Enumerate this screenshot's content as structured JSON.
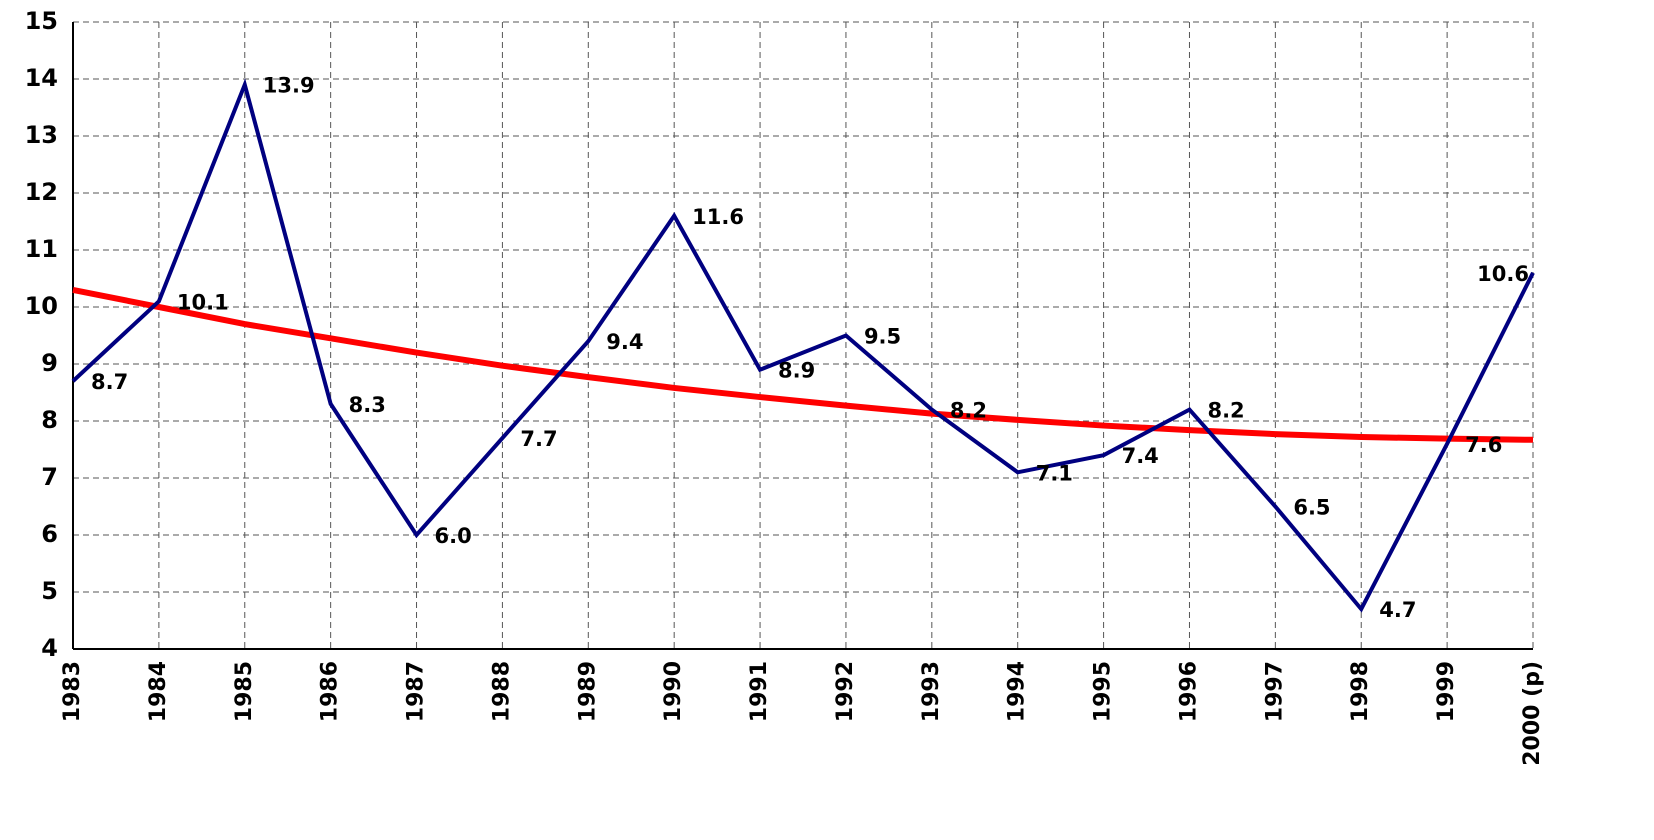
{
  "chart_data": {
    "type": "line",
    "categories": [
      "1983",
      "1984",
      "1985",
      "1986",
      "1987",
      "1988",
      "1989",
      "1990",
      "1991",
      "1992",
      "1993",
      "1994",
      "1995",
      "1996",
      "1997",
      "1998",
      "1999",
      "2000 (p)"
    ],
    "series": [
      {
        "color": "#000080",
        "values": [
          8.7,
          10.1,
          13.9,
          8.3,
          6.0,
          7.7,
          9.4,
          11.6,
          8.9,
          9.5,
          8.2,
          7.1,
          7.4,
          8.2,
          6.5,
          4.7,
          7.6,
          10.6
        ],
        "value_labels": [
          "8.7",
          "10.1",
          "13.9",
          "8.3",
          "6.0",
          "7.7",
          "9.4",
          "11.6",
          "8.9",
          "9.5",
          "8.2",
          "7.1",
          "7.4",
          "8.2",
          "6.5",
          "4.7",
          "7.6",
          "10.6"
        ]
      },
      {
        "color": "#ff0000",
        "values": [
          10.3,
          10.0,
          9.7,
          9.45,
          9.2,
          8.97,
          8.77,
          8.58,
          8.42,
          8.27,
          8.13,
          8.02,
          7.92,
          7.84,
          7.77,
          7.72,
          7.69,
          7.67
        ]
      }
    ],
    "ylim": [
      4,
      15
    ],
    "yticks": [
      4,
      5,
      6,
      7,
      8,
      9,
      10,
      11,
      12,
      13,
      14,
      15
    ],
    "grid": true
  }
}
